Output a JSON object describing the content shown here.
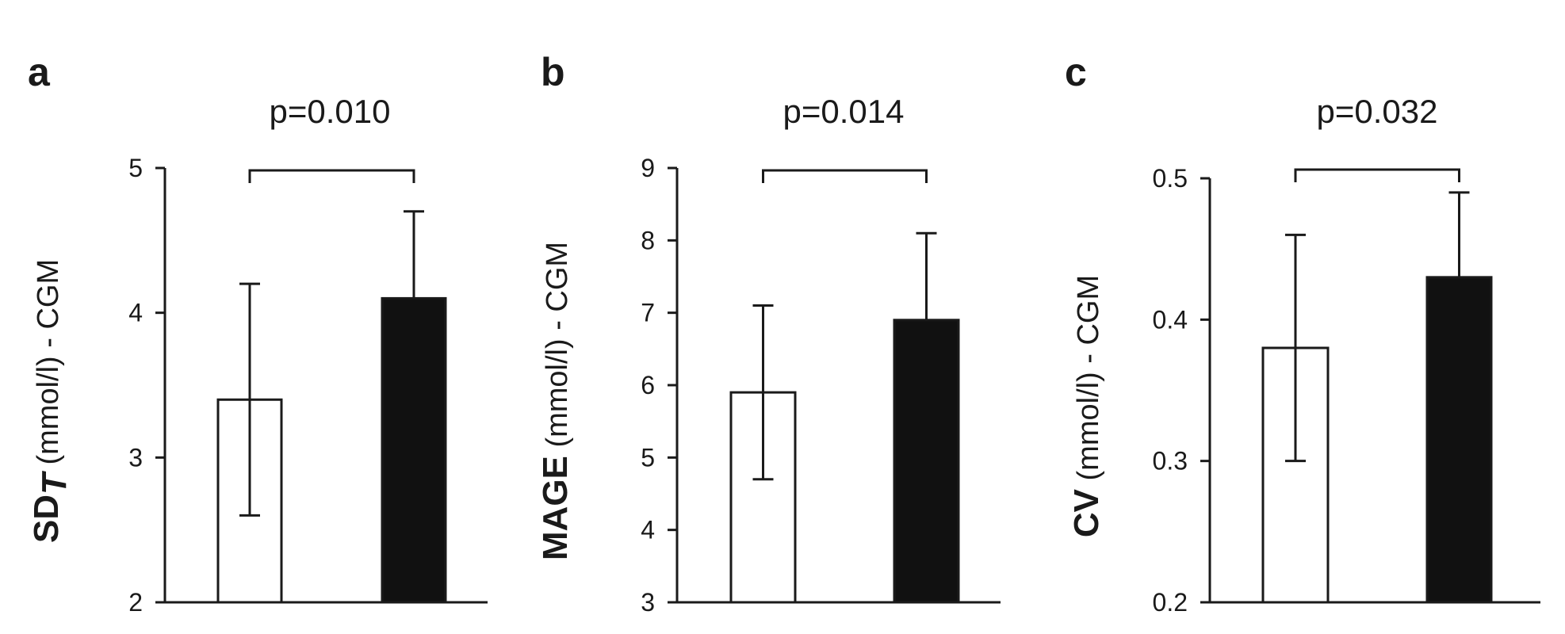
{
  "chart_data": [
    {
      "type": "bar",
      "panel_label": "a",
      "pvalue_label": "p=0.010",
      "ylabel_bold": "SD",
      "ylabel_sub": "T",
      "ylabel_rest": " (mmol/l) - CGM",
      "ylim": [
        2,
        5
      ],
      "yticks": [
        2,
        3,
        4,
        5
      ],
      "tick_labels": [
        "2",
        "3",
        "4",
        "5"
      ],
      "grid": false,
      "bars": [
        {
          "value": 3.4,
          "error_low": 2.6,
          "error_high": 4.2,
          "fill": "#ffffff"
        },
        {
          "value": 4.1,
          "error_low": 4.1,
          "error_high": 4.7,
          "fill": "#111111"
        }
      ]
    },
    {
      "type": "bar",
      "panel_label": "b",
      "pvalue_label": "p=0.014",
      "ylabel_bold": "MAGE",
      "ylabel_sub": "",
      "ylabel_rest": " (mmol/l) - CGM",
      "ylim": [
        3,
        9
      ],
      "yticks": [
        3,
        4,
        5,
        6,
        7,
        8,
        9
      ],
      "tick_labels": [
        "3",
        "4",
        "5",
        "6",
        "7",
        "8",
        "9"
      ],
      "grid": false,
      "bars": [
        {
          "value": 5.9,
          "error_low": 4.7,
          "error_high": 7.1,
          "fill": "#ffffff"
        },
        {
          "value": 6.9,
          "error_low": 6.9,
          "error_high": 8.1,
          "fill": "#111111"
        }
      ]
    },
    {
      "type": "bar",
      "panel_label": "c",
      "pvalue_label": "p=0.032",
      "ylabel_bold": "CV",
      "ylabel_sub": "",
      "ylabel_rest": " (mmol/l) - CGM",
      "ylim": [
        0.2,
        0.5
      ],
      "yticks": [
        0.2,
        0.3,
        0.4,
        0.5
      ],
      "tick_labels": [
        "0.2",
        "0.3",
        "0.4",
        "0.5"
      ],
      "grid": false,
      "bars": [
        {
          "value": 0.38,
          "error_low": 0.3,
          "error_high": 0.46,
          "fill": "#ffffff"
        },
        {
          "value": 0.43,
          "error_low": 0.43,
          "error_high": 0.49,
          "fill": "#111111"
        }
      ]
    }
  ]
}
